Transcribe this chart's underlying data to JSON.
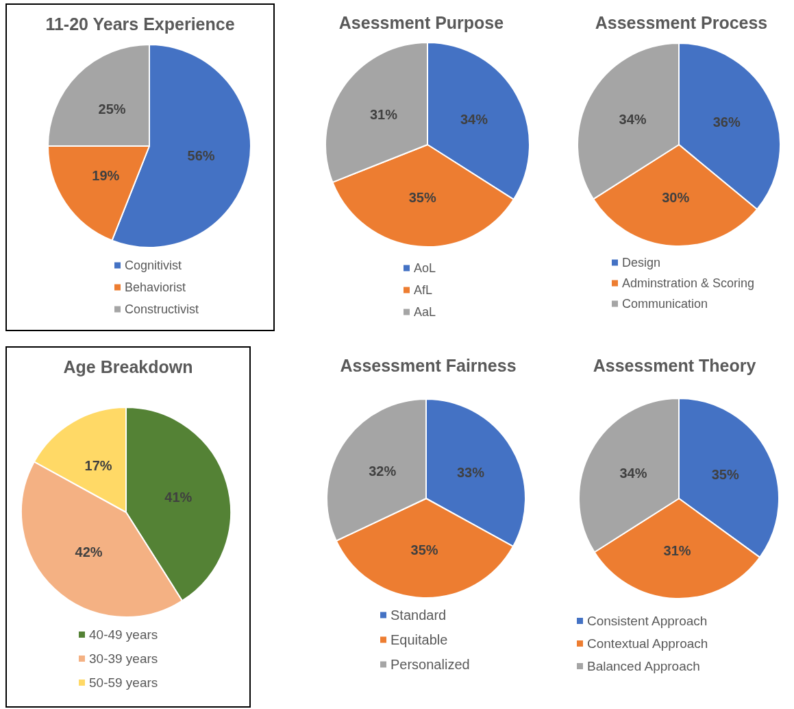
{
  "chart_data": [
    {
      "type": "pie",
      "title": "11-20 Years Experience",
      "categories": [
        "Cognitivist",
        "Behaviorist",
        "Constructivist"
      ],
      "values": [
        56,
        19,
        25
      ],
      "colors": [
        "#4472c4",
        "#ed7d31",
        "#a5a5a5"
      ],
      "value_labels": [
        "56%",
        "19%",
        "25%"
      ],
      "legend": "bottom"
    },
    {
      "type": "pie",
      "title": "Asessment Purpose",
      "categories": [
        "AoL",
        "AfL",
        "AaL"
      ],
      "values": [
        34,
        35,
        31
      ],
      "colors": [
        "#4472c4",
        "#ed7d31",
        "#a5a5a5"
      ],
      "value_labels": [
        "34%",
        "35%",
        "31%"
      ],
      "legend": "bottom"
    },
    {
      "type": "pie",
      "title": "Assessment Process",
      "categories": [
        "Design",
        "Adminstration & Scoring",
        "Communication"
      ],
      "values": [
        36,
        30,
        34
      ],
      "colors": [
        "#4472c4",
        "#ed7d31",
        "#a5a5a5"
      ],
      "value_labels": [
        "36%",
        "30%",
        "34%"
      ],
      "legend": "bottom"
    },
    {
      "type": "pie",
      "title": "Age Breakdown",
      "categories": [
        "40-49 years",
        "30-39 years",
        "50-59 years"
      ],
      "values": [
        41,
        42,
        17
      ],
      "colors": [
        "#548235",
        "#f4b183",
        "#ffd966"
      ],
      "value_labels": [
        "41%",
        "42%",
        "17%"
      ],
      "legend": "bottom"
    },
    {
      "type": "pie",
      "title": "Assessment Fairness",
      "categories": [
        "Standard",
        "Equitable",
        "Personalized"
      ],
      "values": [
        33,
        35,
        32
      ],
      "colors": [
        "#4472c4",
        "#ed7d31",
        "#a5a5a5"
      ],
      "value_labels": [
        "33%",
        "35%",
        "32%"
      ],
      "legend": "bottom"
    },
    {
      "type": "pie",
      "title": "Assessment Theory",
      "categories": [
        "Consistent Approach",
        "Contextual Approach",
        "Balanced Approach"
      ],
      "values": [
        35,
        31,
        34
      ],
      "colors": [
        "#4472c4",
        "#ed7d31",
        "#a5a5a5"
      ],
      "value_labels": [
        "35%",
        "31%",
        "34%"
      ],
      "legend": "bottom"
    }
  ]
}
